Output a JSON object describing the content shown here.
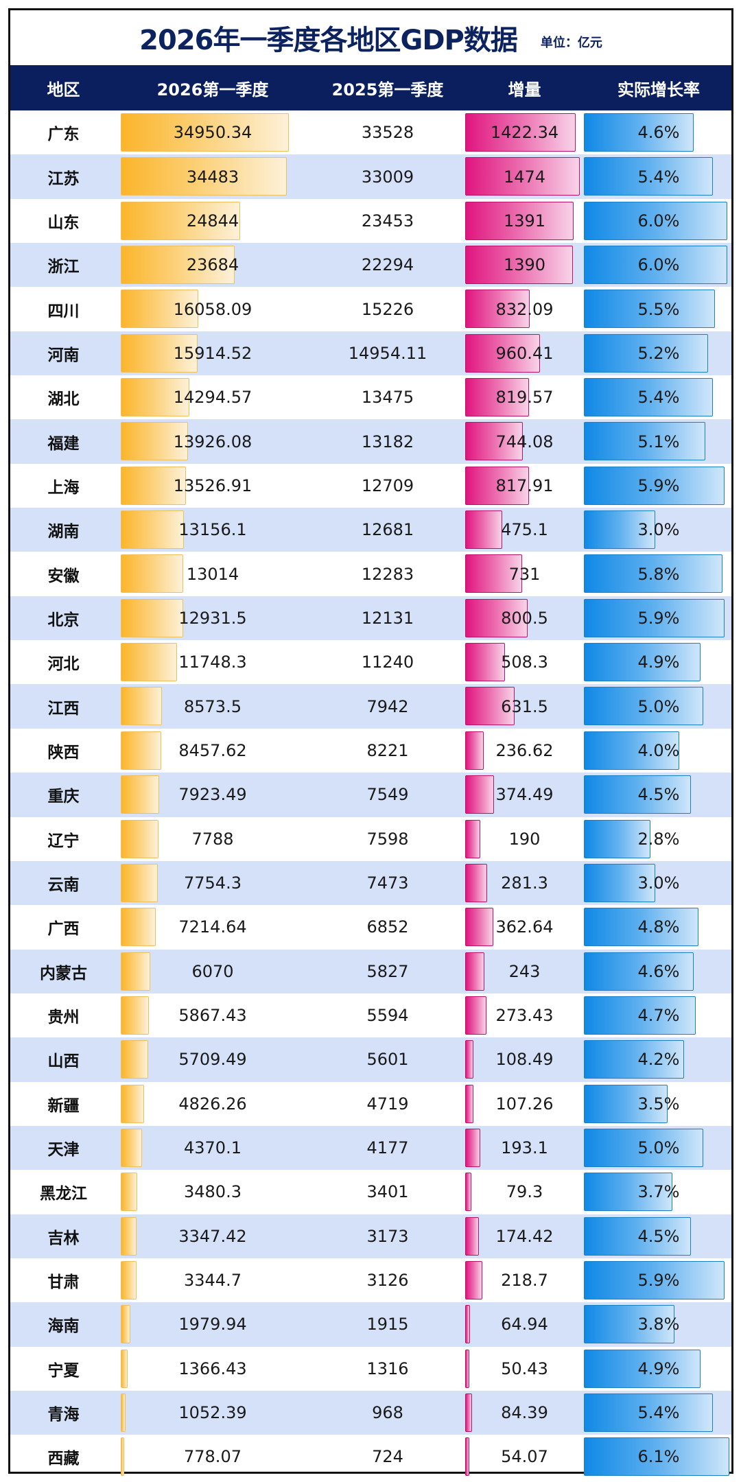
{
  "header": {
    "title": "2026年一季度各地区GDP数据",
    "unit": "单位：亿元",
    "columns": [
      "地区",
      "2026第一季度",
      "2025第一季度",
      "增量",
      "实际增长率"
    ]
  },
  "colors": {
    "header_bg": "#0b1f5e",
    "title_text": "#0d2360",
    "row_alt_bg": "#d4e1f9",
    "gdp_bar": "#fbb52a",
    "increment_bar": "#e0157f",
    "rate_bar": "#1089e6"
  },
  "rows": [
    {
      "region": "广东",
      "gdp_2026": "34950.34",
      "gdp_2025": "33528",
      "increment": "1422.34",
      "rate": "4.6%"
    },
    {
      "region": "江苏",
      "gdp_2026": "34483",
      "gdp_2025": "33009",
      "increment": "1474",
      "rate": "5.4%"
    },
    {
      "region": "山东",
      "gdp_2026": "24844",
      "gdp_2025": "23453",
      "increment": "1391",
      "rate": "6.0%"
    },
    {
      "region": "浙江",
      "gdp_2026": "23684",
      "gdp_2025": "22294",
      "increment": "1390",
      "rate": "6.0%"
    },
    {
      "region": "四川",
      "gdp_2026": "16058.09",
      "gdp_2025": "15226",
      "increment": "832.09",
      "rate": "5.5%"
    },
    {
      "region": "河南",
      "gdp_2026": "15914.52",
      "gdp_2025": "14954.11",
      "increment": "960.41",
      "rate": "5.2%"
    },
    {
      "region": "湖北",
      "gdp_2026": "14294.57",
      "gdp_2025": "13475",
      "increment": "819.57",
      "rate": "5.4%"
    },
    {
      "region": "福建",
      "gdp_2026": "13926.08",
      "gdp_2025": "13182",
      "increment": "744.08",
      "rate": "5.1%"
    },
    {
      "region": "上海",
      "gdp_2026": "13526.91",
      "gdp_2025": "12709",
      "increment": "817.91",
      "rate": "5.9%"
    },
    {
      "region": "湖南",
      "gdp_2026": "13156.1",
      "gdp_2025": "12681",
      "increment": "475.1",
      "rate": "3.0%"
    },
    {
      "region": "安徽",
      "gdp_2026": "13014",
      "gdp_2025": "12283",
      "increment": "731",
      "rate": "5.8%"
    },
    {
      "region": "北京",
      "gdp_2026": "12931.5",
      "gdp_2025": "12131",
      "increment": "800.5",
      "rate": "5.9%"
    },
    {
      "region": "河北",
      "gdp_2026": "11748.3",
      "gdp_2025": "11240",
      "increment": "508.3",
      "rate": "4.9%"
    },
    {
      "region": "江西",
      "gdp_2026": "8573.5",
      "gdp_2025": "7942",
      "increment": "631.5",
      "rate": "5.0%"
    },
    {
      "region": "陕西",
      "gdp_2026": "8457.62",
      "gdp_2025": "8221",
      "increment": "236.62",
      "rate": "4.0%"
    },
    {
      "region": "重庆",
      "gdp_2026": "7923.49",
      "gdp_2025": "7549",
      "increment": "374.49",
      "rate": "4.5%"
    },
    {
      "region": "辽宁",
      "gdp_2026": "7788",
      "gdp_2025": "7598",
      "increment": "190",
      "rate": "2.8%"
    },
    {
      "region": "云南",
      "gdp_2026": "7754.3",
      "gdp_2025": "7473",
      "increment": "281.3",
      "rate": "3.0%"
    },
    {
      "region": "广西",
      "gdp_2026": "7214.64",
      "gdp_2025": "6852",
      "increment": "362.64",
      "rate": "4.8%"
    },
    {
      "region": "内蒙古",
      "gdp_2026": "6070",
      "gdp_2025": "5827",
      "increment": "243",
      "rate": "4.6%"
    },
    {
      "region": "贵州",
      "gdp_2026": "5867.43",
      "gdp_2025": "5594",
      "increment": "273.43",
      "rate": "4.7%"
    },
    {
      "region": "山西",
      "gdp_2026": "5709.49",
      "gdp_2025": "5601",
      "increment": "108.49",
      "rate": "4.2%"
    },
    {
      "region": "新疆",
      "gdp_2026": "4826.26",
      "gdp_2025": "4719",
      "increment": "107.26",
      "rate": "3.5%"
    },
    {
      "region": "天津",
      "gdp_2026": "4370.1",
      "gdp_2025": "4177",
      "increment": "193.1",
      "rate": "5.0%"
    },
    {
      "region": "黑龙江",
      "gdp_2026": "3480.3",
      "gdp_2025": "3401",
      "increment": "79.3",
      "rate": "3.7%"
    },
    {
      "region": "吉林",
      "gdp_2026": "3347.42",
      "gdp_2025": "3173",
      "increment": "174.42",
      "rate": "4.5%"
    },
    {
      "region": "甘肃",
      "gdp_2026": "3344.7",
      "gdp_2025": "3126",
      "increment": "218.7",
      "rate": "5.9%"
    },
    {
      "region": "海南",
      "gdp_2026": "1979.94",
      "gdp_2025": "1915",
      "increment": "64.94",
      "rate": "3.8%"
    },
    {
      "region": "宁夏",
      "gdp_2026": "1366.43",
      "gdp_2025": "1316",
      "increment": "50.43",
      "rate": "4.9%"
    },
    {
      "region": "青海",
      "gdp_2026": "1052.39",
      "gdp_2025": "968",
      "increment": "84.39",
      "rate": "5.4%"
    },
    {
      "region": "西藏",
      "gdp_2026": "778.07",
      "gdp_2025": "724",
      "increment": "54.07",
      "rate": "6.1%"
    }
  ],
  "chart_data": {
    "type": "table",
    "title": "2026年一季度各地区GDP数据",
    "subtitle": "单位：亿元",
    "columns": [
      "地区",
      "2026第一季度",
      "2025第一季度",
      "增量",
      "实际增长率"
    ],
    "categories": [
      "广东",
      "江苏",
      "山东",
      "浙江",
      "四川",
      "河南",
      "湖北",
      "福建",
      "上海",
      "湖南",
      "安徽",
      "北京",
      "河北",
      "江西",
      "陕西",
      "重庆",
      "辽宁",
      "云南",
      "广西",
      "内蒙古",
      "贵州",
      "山西",
      "新疆",
      "天津",
      "黑龙江",
      "吉林",
      "甘肃",
      "海南",
      "宁夏",
      "青海",
      "西藏"
    ],
    "series": [
      {
        "name": "2026第一季度",
        "bar": true,
        "values": [
          34950.34,
          34483,
          24844,
          23684,
          16058.09,
          15914.52,
          14294.57,
          13926.08,
          13526.91,
          13156.1,
          13014,
          12931.5,
          11748.3,
          8573.5,
          8457.62,
          7923.49,
          7788,
          7754.3,
          7214.64,
          6070,
          5867.43,
          5709.49,
          4826.26,
          4370.1,
          3480.3,
          3347.42,
          3344.7,
          1979.94,
          1366.43,
          1052.39,
          778.07
        ]
      },
      {
        "name": "2025第一季度",
        "bar": false,
        "values": [
          33528,
          33009,
          23453,
          22294,
          15226,
          14954.11,
          13475,
          13182,
          12709,
          12681,
          12283,
          12131,
          11240,
          7942,
          8221,
          7549,
          7598,
          7473,
          6852,
          5827,
          5594,
          5601,
          4719,
          4177,
          3401,
          3173,
          3126,
          1915,
          1316,
          968,
          724
        ]
      },
      {
        "name": "增量",
        "bar": true,
        "values": [
          1422.34,
          1474,
          1391,
          1390,
          832.09,
          960.41,
          819.57,
          744.08,
          817.91,
          475.1,
          731,
          800.5,
          508.3,
          631.5,
          236.62,
          374.49,
          190,
          281.3,
          362.64,
          243,
          273.43,
          108.49,
          107.26,
          193.1,
          79.3,
          174.42,
          218.7,
          64.94,
          50.43,
          84.39,
          54.07
        ]
      },
      {
        "name": "实际增长率",
        "bar": true,
        "unit": "%",
        "values": [
          4.6,
          5.4,
          6.0,
          6.0,
          5.5,
          5.2,
          5.4,
          5.1,
          5.9,
          3.0,
          5.8,
          5.9,
          4.9,
          5.0,
          4.0,
          4.5,
          2.8,
          3.0,
          4.8,
          4.6,
          4.7,
          4.2,
          3.5,
          5.0,
          3.7,
          4.5,
          5.9,
          3.8,
          4.9,
          5.4,
          6.1
        ]
      }
    ]
  }
}
